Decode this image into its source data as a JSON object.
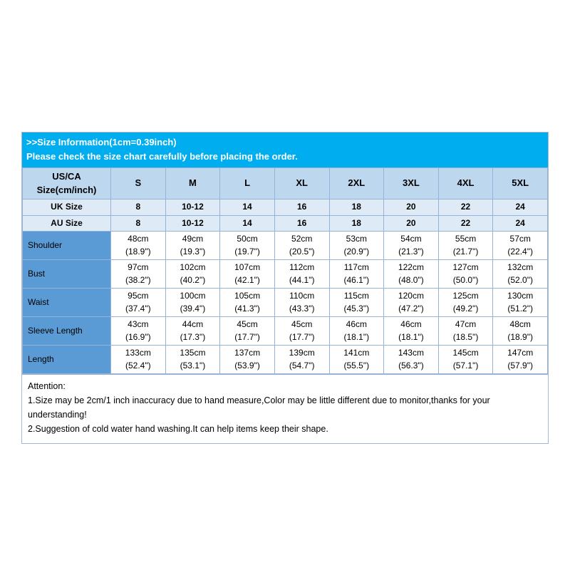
{
  "title_band": {
    "line1": ">>Size Information(1cm=0.39inch)",
    "line2": "Please check the size chart carefully before placing the order."
  },
  "size_chart": {
    "corner_label": "US/CA\nSize(cm/inch)",
    "size_headers": [
      "S",
      "M",
      "L",
      "XL",
      "2XL",
      "3XL",
      "4XL",
      "5XL"
    ],
    "uk": {
      "label": "UK Size",
      "values": [
        "8",
        "10-12",
        "14",
        "16",
        "18",
        "20",
        "22",
        "24"
      ]
    },
    "au": {
      "label": "AU Size",
      "values": [
        "8",
        "10-12",
        "14",
        "16",
        "18",
        "20",
        "22",
        "24"
      ]
    },
    "rows": [
      {
        "label": "Shoulder",
        "values": [
          "48cm\n(18.9\")",
          "49cm\n(19.3\")",
          "50cm\n(19.7\")",
          "52cm\n(20.5\")",
          "53cm\n(20.9\")",
          "54cm\n(21.3\")",
          "55cm\n(21.7\")",
          "57cm\n(22.4\")"
        ]
      },
      {
        "label": "Bust",
        "values": [
          "97cm\n(38.2\")",
          "102cm\n(40.2\")",
          "107cm\n(42.1\")",
          "112cm\n(44.1\")",
          "117cm\n(46.1\")",
          "122cm\n(48.0\")",
          "127cm\n(50.0\")",
          "132cm\n(52.0\")"
        ]
      },
      {
        "label": "Waist",
        "values": [
          "95cm\n(37.4\")",
          "100cm\n(39.4\")",
          "105cm\n(41.3\")",
          "110cm\n(43.3\")",
          "115cm\n(45.3\")",
          "120cm\n(47.2\")",
          "125cm\n(49.2\")",
          "130cm\n(51.2\")"
        ]
      },
      {
        "label": "Sleeve Length",
        "values": [
          "43cm\n(16.9\")",
          "44cm\n(17.3\")",
          "45cm\n(17.7\")",
          "45cm\n(17.7\")",
          "46cm\n(18.1\")",
          "46cm\n(18.1\")",
          "47cm\n(18.5\")",
          "48cm\n(18.9\")"
        ]
      },
      {
        "label": "Length",
        "values": [
          "133cm\n(52.4\")",
          "135cm\n(53.1\")",
          "137cm\n(53.9\")",
          "139cm\n(54.7\")",
          "141cm\n(55.5\")",
          "143cm\n(56.3\")",
          "145cm\n(57.1\")",
          "147cm\n(57.9\")"
        ]
      }
    ]
  },
  "attention": {
    "title": "Attention:",
    "notes": [
      "1.Size may be 2cm/1 inch inaccuracy due to hand measure,Color may be little different due to monitor,thanks for your understanding!",
      "2.Suggestion of cold water hand washing.It can help items keep their shape."
    ]
  },
  "colors": {
    "band_bg": "#00AEEF",
    "header_row_bg": "#BDD7EE",
    "subheader_row_bg": "#DEEBF7",
    "label_column_bg": "#5B9BD5",
    "grid_border": "#95B3D7"
  }
}
